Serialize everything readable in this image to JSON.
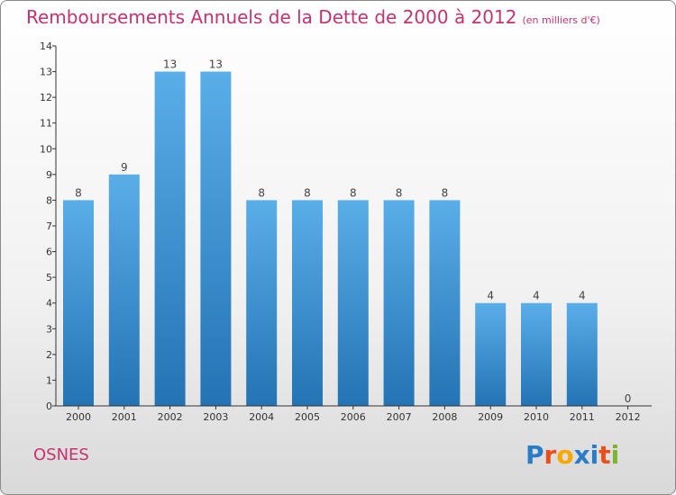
{
  "header": {
    "title": "Remboursements Annuels de la Dette de 2000 à 2012",
    "unit": "(en milliers d'€)"
  },
  "footer": {
    "city": "OSNES",
    "logo": "Proxiti"
  },
  "colors": {
    "title": "#c8326e",
    "bar_top": "#5aaee8",
    "bar_bottom": "#2473b4",
    "axis": "#333333",
    "logo_letters": [
      "#2a7cc7",
      "#e94e1b",
      "#f5a800",
      "#2a7cc7",
      "#2a7cc7",
      "#e94e1b",
      "#7bb62a"
    ]
  },
  "chart_data": {
    "type": "bar",
    "title": "Remboursements Annuels de la Dette de 2000 à 2012",
    "unit": "(en milliers d'€)",
    "categories": [
      "2000",
      "2001",
      "2002",
      "2003",
      "2004",
      "2005",
      "2006",
      "2007",
      "2008",
      "2009",
      "2010",
      "2011",
      "2012"
    ],
    "values": [
      8,
      9,
      13,
      13,
      8,
      8,
      8,
      8,
      8,
      4,
      4,
      4,
      0
    ],
    "data_labels": [
      "8",
      "9",
      "13",
      "13",
      "8",
      "8",
      "8",
      "8",
      "8",
      "4",
      "4",
      "4",
      "0"
    ],
    "ylim": [
      0,
      14
    ],
    "yticks": [
      0,
      1,
      2,
      3,
      4,
      5,
      6,
      7,
      8,
      9,
      10,
      11,
      12,
      13,
      14
    ],
    "ytick_labels": [
      "0",
      "1",
      "2",
      "3",
      "4",
      "5",
      "6",
      "7",
      "8",
      "9",
      "10",
      "11",
      "12",
      "13",
      "14"
    ],
    "grid": false,
    "legend": "none"
  }
}
